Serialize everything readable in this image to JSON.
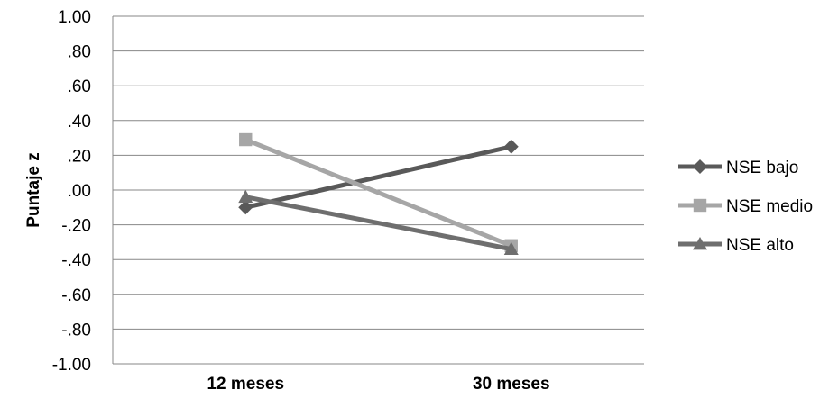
{
  "chart_data": {
    "type": "line",
    "title": "",
    "xlabel": "",
    "ylabel": "Puntaje z",
    "categories": [
      "12 meses",
      "30 meses"
    ],
    "ylim": [
      -1.0,
      1.0
    ],
    "ytick_step": 0.2,
    "yticks": [
      "1.00",
      ".80",
      ".60",
      ".40",
      ".20",
      ".00",
      "-.20",
      "-.40",
      "-.60",
      "-.80",
      "-1.00"
    ],
    "grid": true,
    "legend_position": "right",
    "series": [
      {
        "name": "NSE bajo",
        "values": [
          -0.1,
          0.25
        ],
        "color": "#595959",
        "marker": "diamond"
      },
      {
        "name": "NSE medio",
        "values": [
          0.29,
          -0.32
        ],
        "color": "#a6a6a6",
        "marker": "square"
      },
      {
        "name": "NSE alto",
        "values": [
          -0.04,
          -0.34
        ],
        "color": "#6e6e6e",
        "marker": "triangle"
      }
    ]
  }
}
